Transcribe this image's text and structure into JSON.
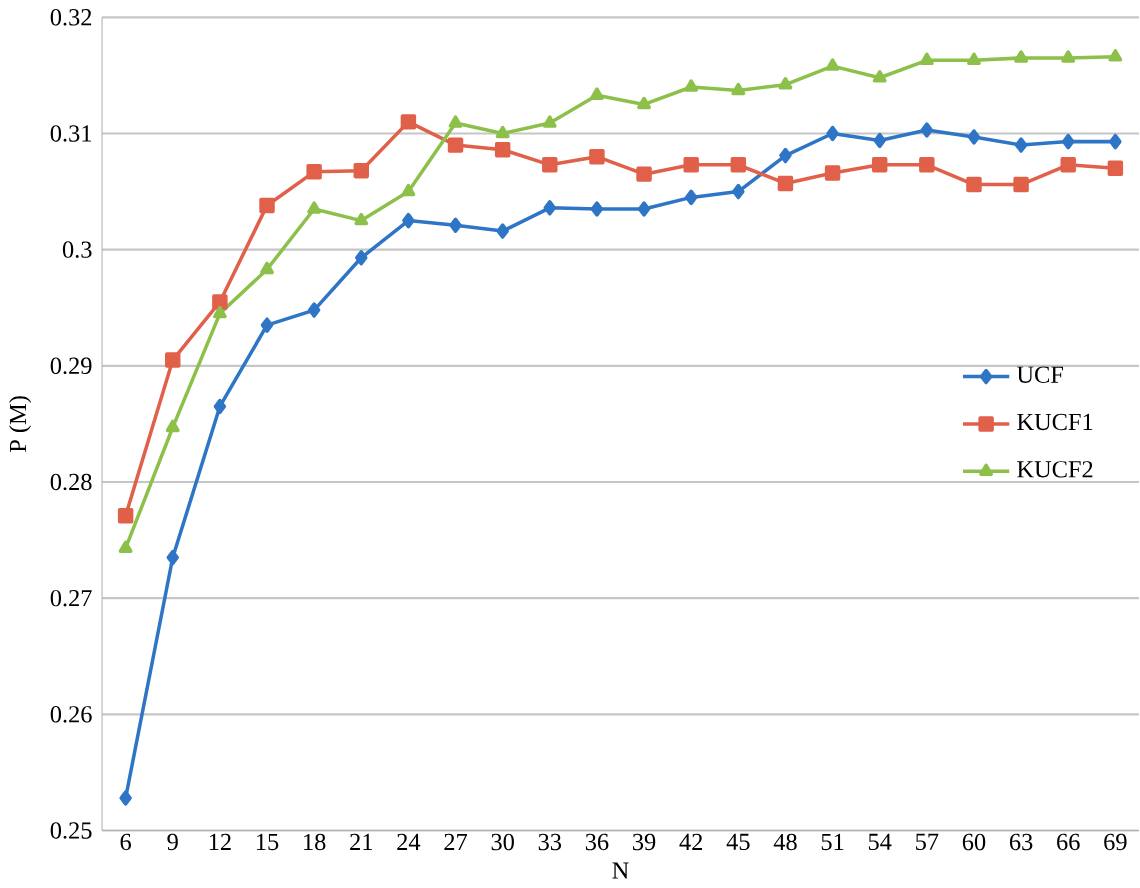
{
  "chart_data": {
    "type": "line",
    "xlabel": "N",
    "ylabel": "P (M)",
    "x": [
      6,
      9,
      12,
      15,
      18,
      21,
      24,
      27,
      30,
      33,
      36,
      39,
      42,
      45,
      48,
      51,
      54,
      57,
      60,
      63,
      66,
      69
    ],
    "series": [
      {
        "name": "UCF",
        "color": "#2e75c6",
        "marker": "diamond",
        "values": [
          0.2528,
          0.2735,
          0.2865,
          0.2935,
          0.2948,
          0.2993,
          0.3025,
          0.3021,
          0.3016,
          0.3036,
          0.3035,
          0.3035,
          0.3045,
          0.305,
          0.3081,
          0.31,
          0.3094,
          0.3103,
          0.3097,
          0.309,
          0.3093,
          0.3093
        ]
      },
      {
        "name": "KUCF1",
        "color": "#e0604a",
        "marker": "square",
        "values": [
          0.2771,
          0.2905,
          0.2955,
          0.3038,
          0.3067,
          0.3068,
          0.311,
          0.309,
          0.3086,
          0.3073,
          0.308,
          0.3065,
          0.3073,
          0.3073,
          0.3057,
          0.3066,
          0.3073,
          0.3073,
          0.3056,
          0.3056,
          0.3073,
          0.307
        ]
      },
      {
        "name": "KUCF2",
        "color": "#8cc04a",
        "marker": "triangle",
        "values": [
          0.2743,
          0.2847,
          0.2945,
          0.2983,
          0.3035,
          0.3025,
          0.305,
          0.3109,
          0.31,
          0.3109,
          0.3133,
          0.3125,
          0.314,
          0.3137,
          0.3142,
          0.3158,
          0.3148,
          0.3163,
          0.3163,
          0.3165,
          0.3165,
          0.3166
        ]
      }
    ],
    "xlim": [
      4.5,
      70.5
    ],
    "ylim": [
      0.25,
      0.32
    ],
    "xticks": [
      6,
      9,
      12,
      15,
      18,
      21,
      24,
      27,
      30,
      33,
      36,
      39,
      42,
      45,
      48,
      51,
      54,
      57,
      60,
      63,
      66,
      69
    ],
    "yticks": [
      0.25,
      0.26,
      0.27,
      0.28,
      0.29,
      0.3,
      0.31,
      0.32
    ],
    "grid": "y",
    "legend": "right",
    "line_style": "solid"
  }
}
